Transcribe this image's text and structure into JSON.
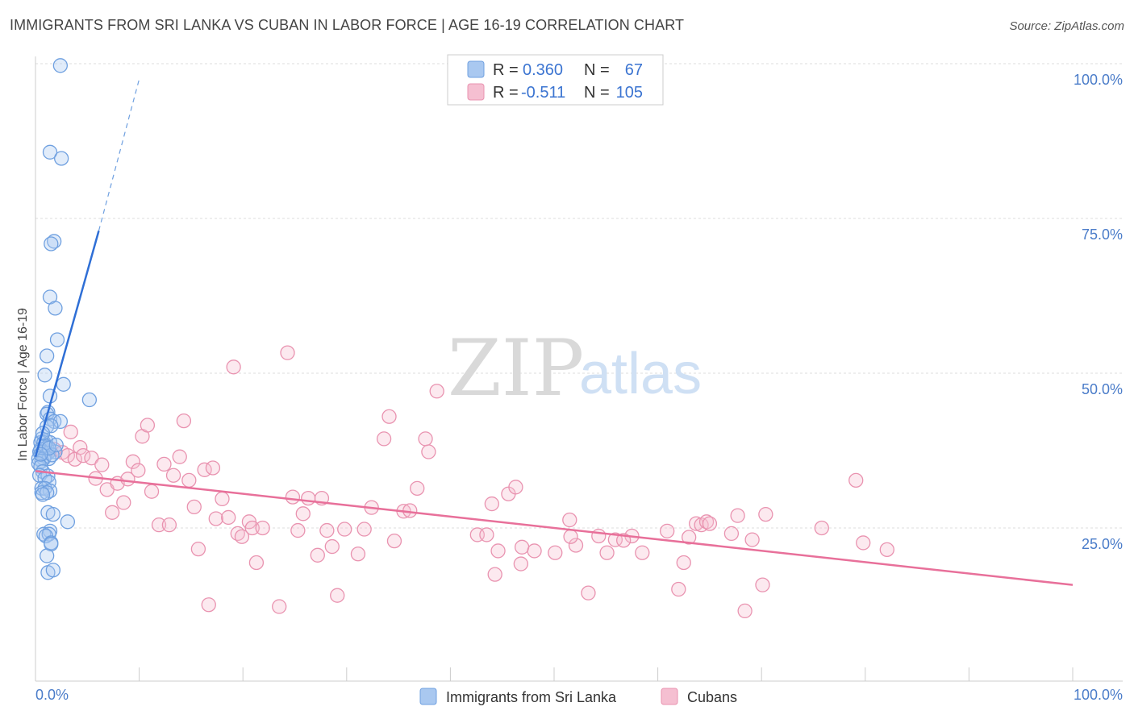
{
  "title": "IMMIGRANTS FROM SRI LANKA VS CUBAN IN LABOR FORCE | AGE 16-19 CORRELATION CHART",
  "source": "Source: ZipAtlas.com",
  "watermark": {
    "zip": "ZIP",
    "atlas": "atlas"
  },
  "colors": {
    "blue_fill": "#a9c8f0",
    "blue_stroke": "#6fa0e0",
    "blue_line": "#2f6fd6",
    "pink_fill": "#f5bfd1",
    "pink_stroke": "#e993b0",
    "pink_line": "#e8709a",
    "grid": "#dddddd",
    "axis_text": "#4a7cc9"
  },
  "legend": {
    "rows": [
      {
        "r_label": "R =",
        "r_value": "0.360",
        "n_label": "N =",
        "n_value": "67"
      },
      {
        "r_label": "R =",
        "r_value": "-0.511",
        "n_label": "N =",
        "n_value": "105"
      }
    ]
  },
  "chart_data": {
    "type": "scatter",
    "title": "IMMIGRANTS FROM SRI LANKA VS CUBAN IN LABOR FORCE | AGE 16-19 CORRELATION CHART",
    "xlabel": "",
    "ylabel": "In Labor Force | Age 16-19",
    "xlim": [
      0,
      100
    ],
    "ylim": [
      0,
      105
    ],
    "x_tick_labels": [
      "0.0%",
      "100.0%"
    ],
    "y_ticks": [
      25,
      50,
      75,
      100
    ],
    "y_tick_labels": [
      "25.0%",
      "50.0%",
      "75.0%",
      "100.0%"
    ],
    "grid": true,
    "legend_position": "top-center",
    "series": [
      {
        "name": "Immigrants from Sri Lanka",
        "color": "#a9c8f0",
        "r": 0.36,
        "n": 67,
        "trend": {
          "x0": 0.0,
          "y0": 36.5,
          "x1": 6.1,
          "y1": 73.0,
          "dash_x1": 10.0,
          "dash_y1": 97.5
        },
        "points": [
          [
            2.4,
            99.7
          ],
          [
            1.4,
            85.7
          ],
          [
            2.5,
            84.7
          ],
          [
            1.8,
            71.3
          ],
          [
            1.5,
            70.9
          ],
          [
            1.4,
            62.3
          ],
          [
            1.9,
            60.5
          ],
          [
            2.1,
            55.4
          ],
          [
            1.1,
            52.8
          ],
          [
            0.9,
            49.7
          ],
          [
            2.7,
            48.2
          ],
          [
            1.4,
            46.3
          ],
          [
            5.2,
            45.7
          ],
          [
            1.2,
            43.7
          ],
          [
            1.1,
            43.4
          ],
          [
            1.4,
            42.6
          ],
          [
            1.8,
            42.2
          ],
          [
            2.4,
            42.2
          ],
          [
            1.1,
            41.4
          ],
          [
            1.5,
            41.5
          ],
          [
            0.6,
            39.4
          ],
          [
            1.0,
            39.1
          ],
          [
            0.5,
            38.8
          ],
          [
            0.8,
            38.8
          ],
          [
            1.4,
            38.8
          ],
          [
            1.1,
            38.0
          ],
          [
            0.5,
            37.7
          ],
          [
            0.4,
            37.3
          ],
          [
            0.7,
            37.3
          ],
          [
            1.2,
            37.1
          ],
          [
            1.9,
            37.3
          ],
          [
            0.9,
            36.6
          ],
          [
            0.3,
            36.2
          ],
          [
            0.8,
            36.2
          ],
          [
            1.3,
            36.2
          ],
          [
            0.6,
            35.8
          ],
          [
            0.3,
            35.4
          ],
          [
            0.5,
            34.9
          ],
          [
            0.7,
            34.1
          ],
          [
            0.4,
            33.5
          ],
          [
            1.2,
            33.4
          ],
          [
            0.9,
            33.0
          ],
          [
            1.3,
            32.4
          ],
          [
            0.6,
            31.4
          ],
          [
            0.9,
            31.4
          ],
          [
            1.4,
            31.0
          ],
          [
            0.6,
            30.7
          ],
          [
            1.1,
            30.7
          ],
          [
            0.7,
            30.4
          ],
          [
            1.2,
            27.5
          ],
          [
            1.7,
            27.2
          ],
          [
            3.1,
            26.0
          ],
          [
            1.4,
            24.5
          ],
          [
            0.8,
            24.0
          ],
          [
            1.3,
            24.0
          ],
          [
            1.0,
            23.7
          ],
          [
            1.5,
            22.6
          ],
          [
            1.5,
            22.4
          ],
          [
            1.1,
            20.5
          ],
          [
            1.2,
            17.8
          ],
          [
            1.7,
            18.2
          ],
          [
            0.9,
            38.3
          ],
          [
            1.6,
            36.8
          ],
          [
            0.7,
            40.3
          ],
          [
            1.3,
            37.9
          ],
          [
            2.0,
            38.4
          ],
          [
            0.5,
            36.9
          ]
        ]
      },
      {
        "name": "Cubans",
        "color": "#f5bfd1",
        "r": -0.511,
        "n": 105,
        "trend": {
          "x0": 0.0,
          "y0": 34.2,
          "x1": 100.0,
          "y1": 15.8
        },
        "points": [
          [
            1.8,
            37.7
          ],
          [
            2.6,
            37.2
          ],
          [
            3.1,
            36.7
          ],
          [
            3.4,
            40.5
          ],
          [
            3.8,
            36.1
          ],
          [
            4.3,
            38.0
          ],
          [
            4.6,
            36.7
          ],
          [
            5.4,
            36.3
          ],
          [
            5.8,
            33.0
          ],
          [
            6.4,
            35.2
          ],
          [
            6.9,
            31.2
          ],
          [
            7.4,
            27.5
          ],
          [
            7.9,
            32.2
          ],
          [
            8.5,
            29.1
          ],
          [
            8.9,
            32.9
          ],
          [
            9.4,
            35.7
          ],
          [
            9.9,
            34.3
          ],
          [
            10.3,
            39.8
          ],
          [
            10.8,
            41.6
          ],
          [
            11.2,
            30.9
          ],
          [
            11.9,
            25.5
          ],
          [
            12.4,
            35.3
          ],
          [
            12.9,
            25.5
          ],
          [
            13.3,
            33.5
          ],
          [
            13.9,
            36.5
          ],
          [
            14.3,
            42.3
          ],
          [
            14.8,
            32.7
          ],
          [
            15.3,
            28.4
          ],
          [
            15.7,
            21.6
          ],
          [
            16.3,
            34.4
          ],
          [
            16.7,
            12.6
          ],
          [
            17.1,
            34.7
          ],
          [
            17.4,
            26.5
          ],
          [
            18.0,
            29.7
          ],
          [
            18.6,
            26.7
          ],
          [
            19.1,
            51.0
          ],
          [
            19.5,
            24.1
          ],
          [
            19.9,
            23.6
          ],
          [
            20.6,
            26.0
          ],
          [
            20.9,
            25.0
          ],
          [
            21.3,
            19.4
          ],
          [
            21.9,
            25.0
          ],
          [
            23.5,
            12.3
          ],
          [
            24.3,
            53.3
          ],
          [
            24.8,
            30.0
          ],
          [
            25.3,
            24.6
          ],
          [
            25.8,
            27.3
          ],
          [
            26.3,
            29.8
          ],
          [
            27.2,
            20.6
          ],
          [
            27.6,
            29.8
          ],
          [
            28.1,
            24.6
          ],
          [
            28.6,
            22.0
          ],
          [
            29.1,
            14.1
          ],
          [
            29.8,
            24.8
          ],
          [
            31.1,
            20.8
          ],
          [
            31.7,
            24.8
          ],
          [
            32.4,
            28.3
          ],
          [
            33.6,
            39.4
          ],
          [
            34.1,
            43.0
          ],
          [
            34.6,
            22.9
          ],
          [
            35.5,
            27.7
          ],
          [
            36.1,
            27.8
          ],
          [
            36.8,
            31.4
          ],
          [
            37.6,
            39.4
          ],
          [
            37.9,
            37.3
          ],
          [
            38.7,
            47.1
          ],
          [
            42.6,
            23.9
          ],
          [
            43.5,
            23.9
          ],
          [
            44.0,
            28.9
          ],
          [
            44.3,
            17.5
          ],
          [
            44.6,
            21.3
          ],
          [
            45.6,
            30.5
          ],
          [
            46.3,
            31.6
          ],
          [
            46.8,
            19.2
          ],
          [
            46.9,
            21.9
          ],
          [
            48.1,
            21.3
          ],
          [
            50.1,
            21.0
          ],
          [
            51.5,
            26.3
          ],
          [
            52.1,
            22.2
          ],
          [
            53.3,
            14.5
          ],
          [
            54.3,
            23.7
          ],
          [
            55.1,
            21.0
          ],
          [
            55.9,
            23.1
          ],
          [
            57.5,
            23.7
          ],
          [
            58.5,
            21.0
          ],
          [
            60.9,
            24.5
          ],
          [
            62.0,
            15.1
          ],
          [
            62.5,
            19.4
          ],
          [
            63.0,
            23.5
          ],
          [
            63.7,
            25.7
          ],
          [
            64.2,
            25.5
          ],
          [
            64.7,
            26.0
          ],
          [
            65.0,
            25.7
          ],
          [
            67.1,
            24.1
          ],
          [
            67.7,
            27.0
          ],
          [
            68.4,
            11.6
          ],
          [
            69.1,
            23.1
          ],
          [
            70.1,
            15.8
          ],
          [
            70.4,
            27.2
          ],
          [
            75.8,
            25.0
          ],
          [
            79.1,
            32.7
          ],
          [
            79.8,
            22.6
          ],
          [
            82.1,
            21.5
          ],
          [
            51.6,
            23.6
          ],
          [
            56.7,
            23.0
          ]
        ]
      }
    ]
  }
}
